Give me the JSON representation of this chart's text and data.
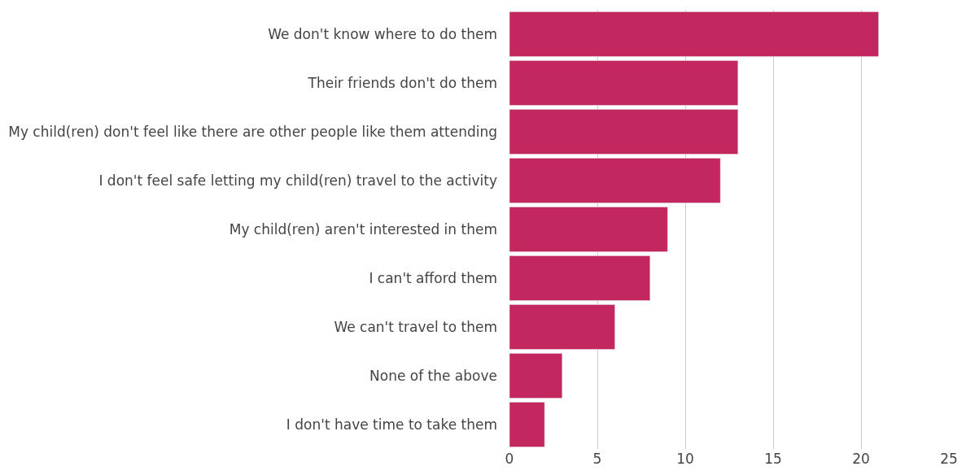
{
  "chart_data": {
    "type": "bar",
    "orientation": "horizontal",
    "categories": [
      "We don't know where to do them",
      "Their friends don't do them",
      "My child(ren) don't feel like there are other people like them attending",
      "I don't feel safe letting my child(ren) travel to the activity",
      "My child(ren) aren't interested in them",
      "I can't afford them",
      "We can't travel to them",
      "None of the above",
      "I don't have time to take them"
    ],
    "values": [
      21,
      13,
      13,
      12,
      9,
      8,
      6,
      3,
      2
    ],
    "color": "#c2275f",
    "xlim": [
      0,
      25
    ],
    "xticks": [
      0,
      5,
      10,
      15,
      20,
      25
    ],
    "grid": "x",
    "legend": false
  }
}
